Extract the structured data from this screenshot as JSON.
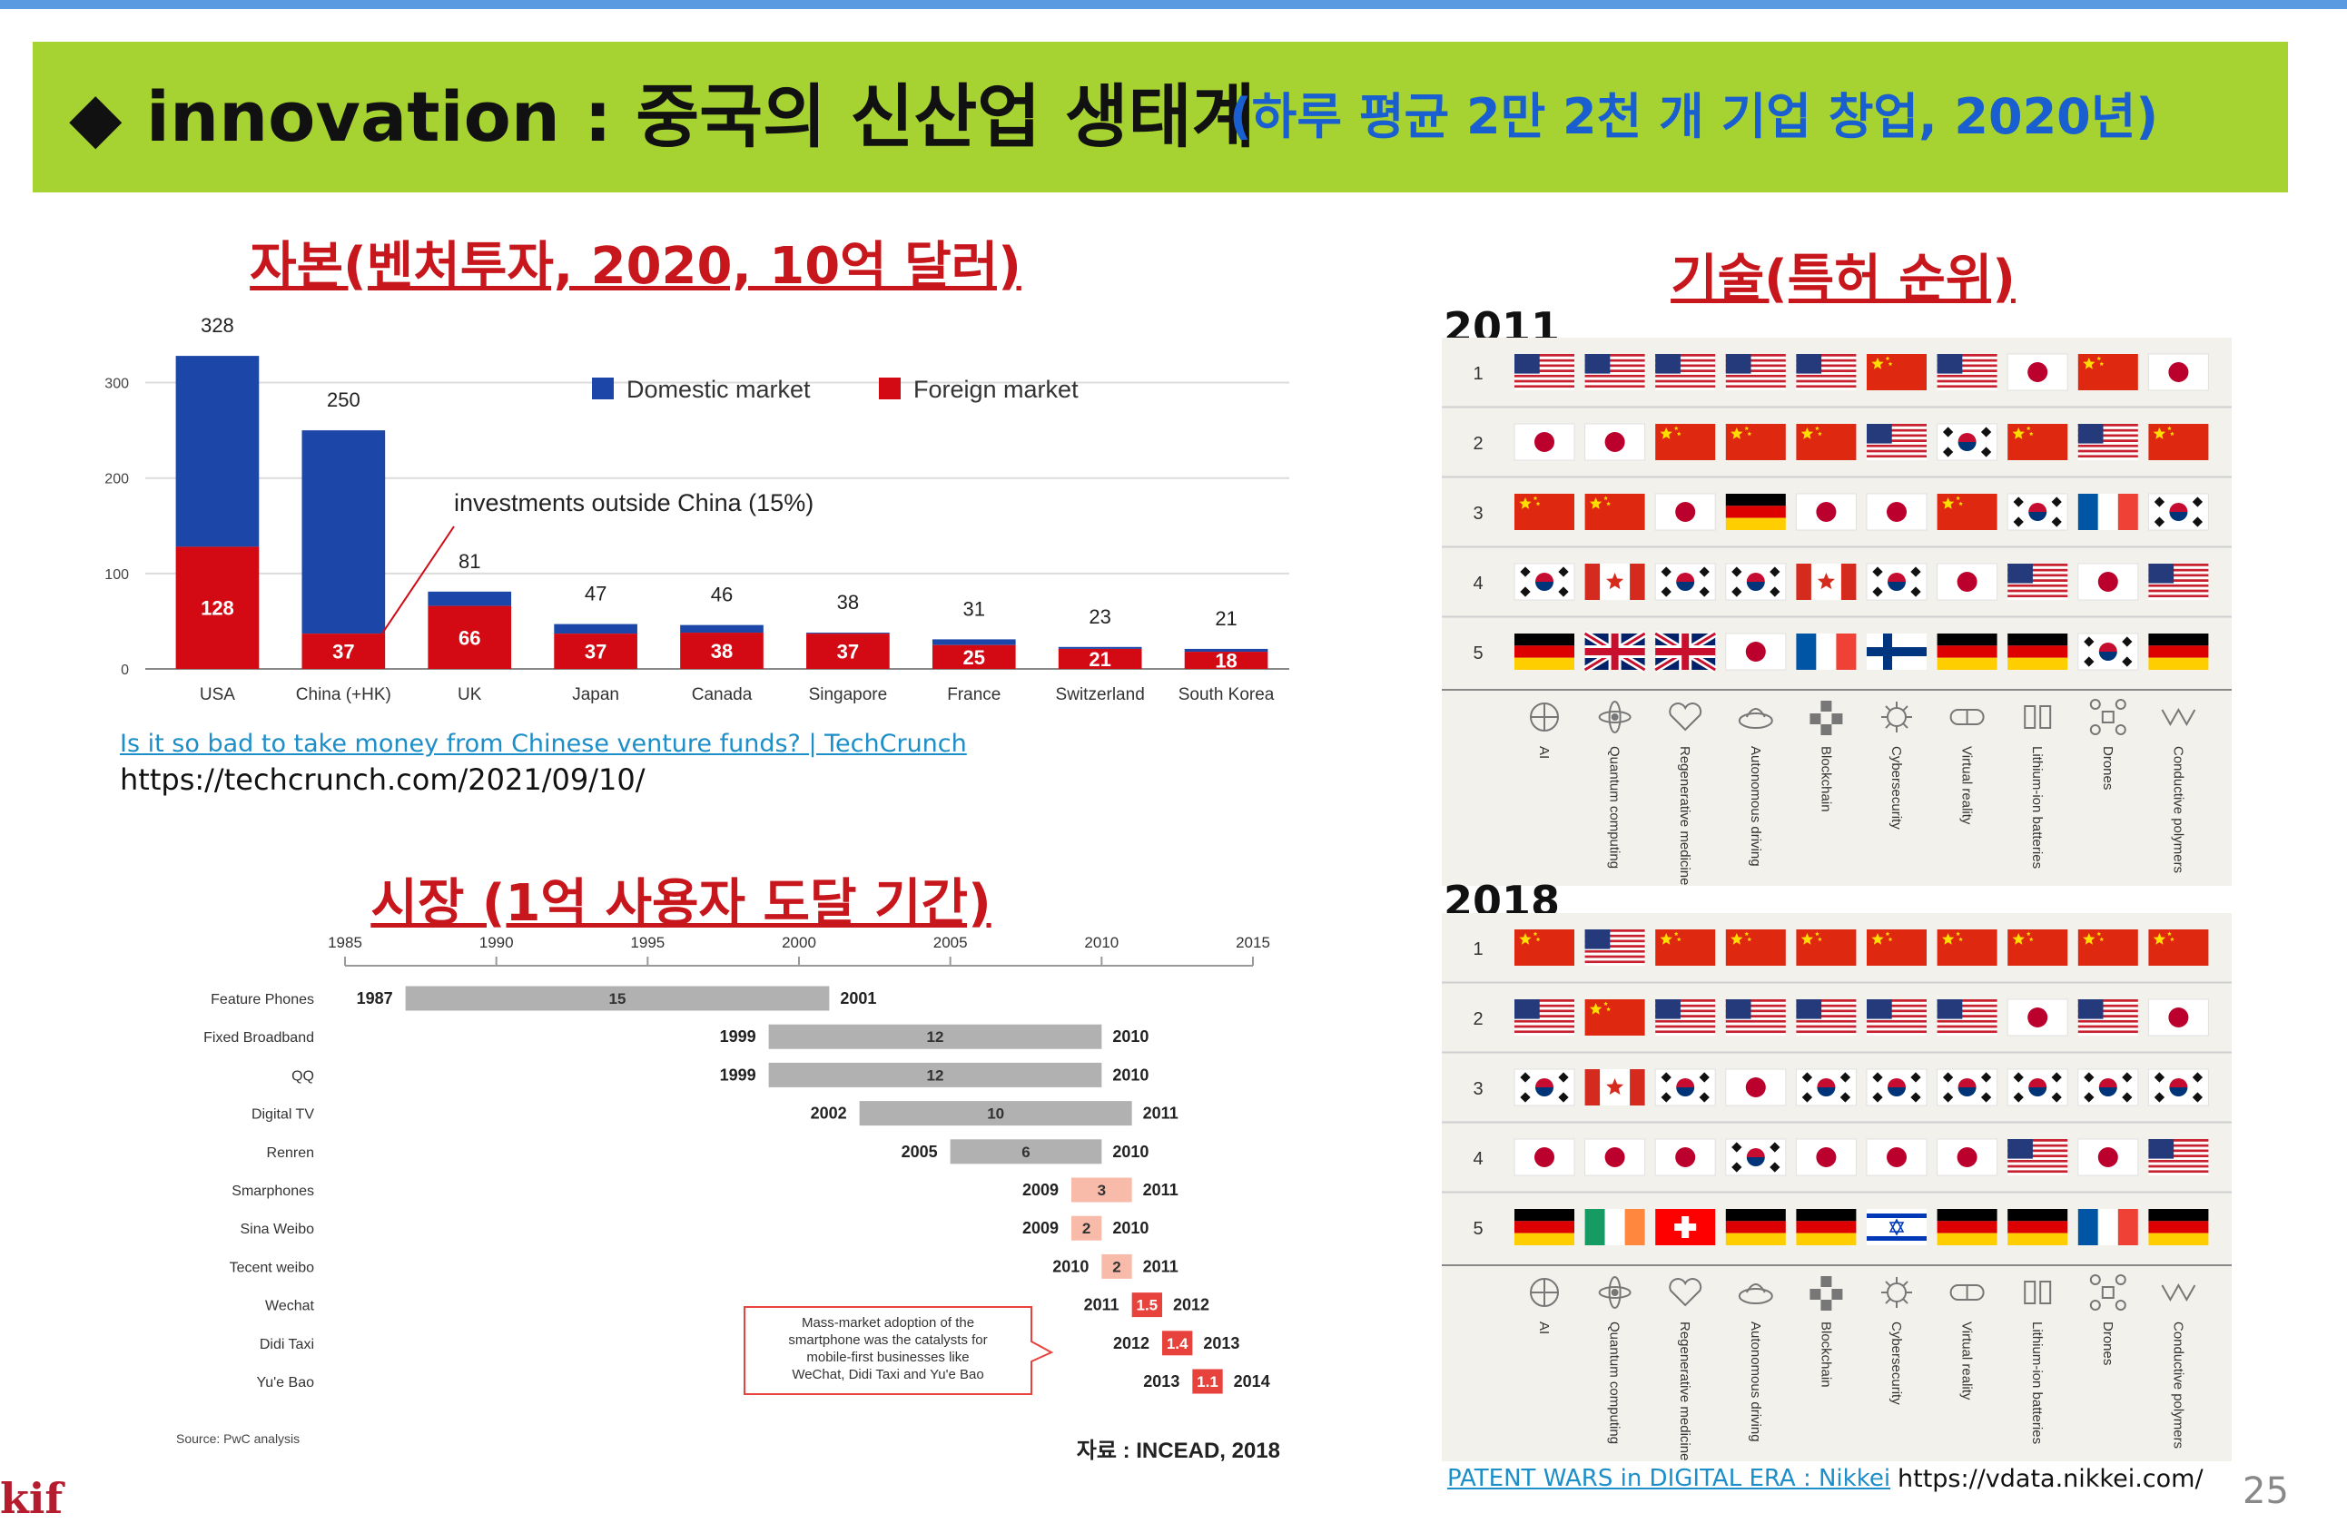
{
  "header": {
    "title": "◆ innovation : 중국의 신산업 생태계",
    "subtitle": "(하루 평균 2만 2천 개 기업 창업, 2020년)"
  },
  "capital": {
    "title": "자본(벤처투자, 2020, 10억 달러)",
    "annotation": "investments outside China (15%)",
    "source_link": "Is it so bad to take money from Chinese venture funds? | TechCrunch",
    "source_url": "https://techcrunch.com/2021/09/10/",
    "chart_data": {
      "type": "bar",
      "stacked": true,
      "categories": [
        "USA",
        "China (+HK)",
        "UK",
        "Japan",
        "Canada",
        "Singapore",
        "France",
        "Switzerland",
        "South Korea"
      ],
      "totals": [
        328,
        250,
        81,
        47,
        46,
        38,
        31,
        23,
        21
      ],
      "series": [
        {
          "name": "Domestic market",
          "color": "#1c47a8",
          "values": [
            200,
            213,
            15,
            10,
            8,
            1,
            6,
            2,
            3
          ]
        },
        {
          "name": "Foreign market",
          "color": "#d30a14",
          "values": [
            128,
            37,
            66,
            37,
            38,
            37,
            25,
            21,
            18
          ]
        }
      ],
      "foreign_labels": [
        "128",
        "37",
        "66",
        "37",
        "38",
        "37",
        "25",
        "21",
        "18"
      ],
      "yticks": [
        "0",
        "100",
        "200",
        "300"
      ],
      "ylim": [
        0,
        330
      ],
      "legend": "top-right",
      "grid": true
    }
  },
  "market": {
    "title": "시장 (1억 사용자 도달 기간)",
    "callout": [
      "Mass-market adoption of the",
      "smartphone was the catalysts for",
      "mobile-first businesses like",
      "WeChat, Didi Taxi and Yu'e Bao"
    ],
    "source": "Source: PwC analysis",
    "credit": "자료 : INCEAD, 2018",
    "chart_data": {
      "type": "bar",
      "orientation": "horizontal-range",
      "xticks": [
        "1985",
        "1990",
        "1995",
        "2000",
        "2005",
        "2010",
        "2015"
      ],
      "xlim": [
        1985,
        2015
      ],
      "rows": [
        {
          "name": "Feature Phones",
          "start": 1987,
          "end": 2001,
          "start_label": "1987",
          "end_label": "2001",
          "years": "15",
          "color": "#b1b1b1"
        },
        {
          "name": "Fixed Broadband",
          "start": 1999,
          "end": 2010,
          "start_label": "1999",
          "end_label": "2010",
          "years": "12",
          "color": "#b1b1b1"
        },
        {
          "name": "QQ",
          "start": 1999,
          "end": 2010,
          "start_label": "1999",
          "end_label": "2010",
          "years": "12",
          "color": "#b1b1b1"
        },
        {
          "name": "Digital TV",
          "start": 2002,
          "end": 2011,
          "start_label": "2002",
          "end_label": "2011",
          "years": "10",
          "color": "#b1b1b1"
        },
        {
          "name": "Renren",
          "start": 2005,
          "end": 2010,
          "start_label": "2005",
          "end_label": "2010",
          "years": "6",
          "color": "#b1b1b1"
        },
        {
          "name": "Smarphones",
          "start": 2009,
          "end": 2011,
          "start_label": "2009",
          "end_label": "2011",
          "years": "3",
          "color": "#f9bba9"
        },
        {
          "name": "Sina Weibo",
          "start": 2009,
          "end": 2010,
          "start_label": "2009",
          "end_label": "2010",
          "years": "2",
          "color": "#f9bba9"
        },
        {
          "name": "Tecent weibo",
          "start": 2010,
          "end": 2011,
          "start_label": "2010",
          "end_label": "2011",
          "years": "2",
          "color": "#f9bba9"
        },
        {
          "name": "Wechat",
          "start": 2011,
          "end": 2012,
          "start_label": "2011",
          "end_label": "2012",
          "years": "1.5",
          "color": "#e8423c"
        },
        {
          "name": "Didi Taxi",
          "start": 2012,
          "end": 2013,
          "start_label": "2012",
          "end_label": "2013",
          "years": "1.4",
          "color": "#e8423c"
        },
        {
          "name": "Yu'e Bao",
          "start": 2013,
          "end": 2014,
          "start_label": "2013",
          "end_label": "2014",
          "years": "1.1",
          "color": "#e8423c"
        }
      ]
    }
  },
  "technology": {
    "title": "기술(특허 순위)",
    "source_link": "PATENT WARS in DIGITAL ERA : Nikkei",
    "source_url": "https://vdata.nikkei.com/",
    "page_number": "25",
    "logo": "kif",
    "categories": [
      "AI",
      "Quantum computing",
      "Regenerative medicine",
      "Autonomous driving",
      "Blockchain",
      "Cybersecurity",
      "Virtual reality",
      "Lithium-ion batteries",
      "Drones",
      "Conductive polymers"
    ],
    "ranks": [
      "1",
      "2",
      "3",
      "4",
      "5"
    ],
    "panels": [
      {
        "year": "2011",
        "rows": [
          [
            "us",
            "us",
            "us",
            "us",
            "us",
            "cn",
            "us",
            "jp",
            "cn",
            "jp"
          ],
          [
            "jp",
            "jp",
            "cn",
            "cn",
            "cn",
            "us",
            "kr",
            "cn",
            "us",
            "cn"
          ],
          [
            "cn",
            "cn",
            "jp",
            "de",
            "jp",
            "jp",
            "cn",
            "kr",
            "fr",
            "kr"
          ],
          [
            "kr",
            "ca",
            "kr",
            "kr",
            "ca",
            "kr",
            "jp",
            "us",
            "jp",
            "us"
          ],
          [
            "de",
            "uk",
            "uk",
            "jp",
            "fr",
            "fi",
            "de",
            "de",
            "kr",
            "de"
          ]
        ]
      },
      {
        "year": "2018",
        "rows": [
          [
            "cn",
            "us",
            "cn",
            "cn",
            "cn",
            "cn",
            "cn",
            "cn",
            "cn",
            "cn"
          ],
          [
            "us",
            "cn",
            "us",
            "us",
            "us",
            "us",
            "us",
            "jp",
            "us",
            "jp"
          ],
          [
            "kr",
            "ca",
            "kr",
            "jp",
            "kr",
            "kr",
            "kr",
            "kr",
            "kr",
            "kr"
          ],
          [
            "jp",
            "jp",
            "jp",
            "kr",
            "jp",
            "jp",
            "jp",
            "us",
            "jp",
            "us"
          ],
          [
            "de",
            "ie",
            "ch",
            "de",
            "de",
            "il",
            "de",
            "de",
            "fr",
            "de"
          ]
        ]
      }
    ]
  }
}
